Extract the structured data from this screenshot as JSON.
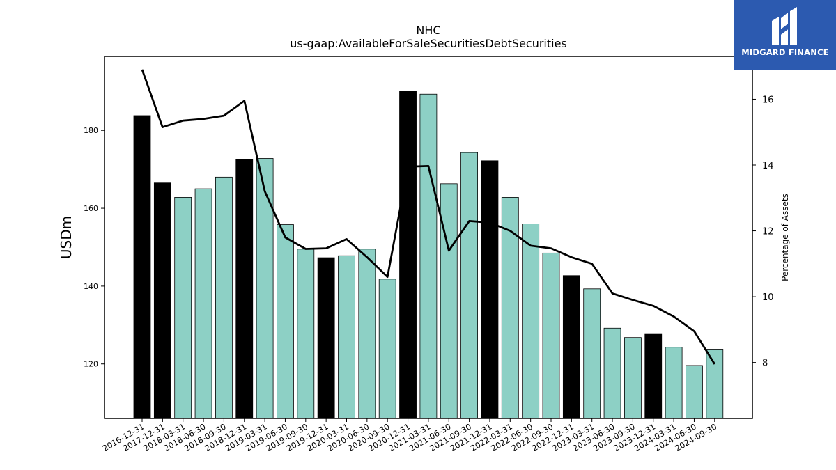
{
  "chart_data": {
    "type": "bar",
    "title": "NHC",
    "subtitle": "us-gaap:AvailableForSaleSecuritiesDebtSecurities",
    "ylabel": "USDm",
    "y2label": "Percentage of Assets",
    "ylim": [
      106,
      199
    ],
    "y2lim": [
      6.3,
      17.3
    ],
    "yticks": [
      120,
      140,
      160,
      180
    ],
    "y2ticks": [
      8,
      10,
      12,
      14,
      16
    ],
    "categories": [
      "2016-12-31",
      "2017-12-31",
      "2018-03-31",
      "2018-06-30",
      "2018-09-30",
      "2018-12-31",
      "2019-03-31",
      "2019-06-30",
      "2019-09-30",
      "2019-12-31",
      "2020-03-31",
      "2020-06-30",
      "2020-09-30",
      "2020-12-31",
      "2021-03-31",
      "2021-06-30",
      "2021-09-30",
      "2021-12-31",
      "2022-03-31",
      "2022-06-30",
      "2022-09-30",
      "2022-12-31",
      "2023-03-31",
      "2023-06-30",
      "2023-09-30",
      "2023-12-31",
      "2024-03-31",
      "2024-06-30",
      "2024-09-30"
    ],
    "series": [
      {
        "values": [
          183.8,
          166.5,
          162.8,
          165.0,
          168.0,
          172.5,
          172.8,
          155.8,
          149.5,
          147.3,
          147.8,
          149.5,
          141.8,
          190.0,
          189.3,
          166.3,
          174.3,
          172.2,
          162.8,
          156.0,
          148.5,
          142.7,
          139.3,
          129.2,
          126.8,
          127.8,
          124.3,
          119.6,
          123.8
        ],
        "colors": [
          "#000000",
          "#000000",
          "#8dd0c5",
          "#8dd0c5",
          "#8dd0c5",
          "#000000",
          "#8dd0c5",
          "#8dd0c5",
          "#8dd0c5",
          "#000000",
          "#8dd0c5",
          "#8dd0c5",
          "#8dd0c5",
          "#000000",
          "#8dd0c5",
          "#8dd0c5",
          "#8dd0c5",
          "#000000",
          "#8dd0c5",
          "#8dd0c5",
          "#8dd0c5",
          "#000000",
          "#8dd0c5",
          "#8dd0c5",
          "#8dd0c5",
          "#000000",
          "#8dd0c5",
          "#8dd0c5",
          "#8dd0c5"
        ]
      },
      {
        "type": "line",
        "axis": "right",
        "color": "#000000",
        "values": [
          16.9,
          15.15,
          15.35,
          15.4,
          15.5,
          15.95,
          13.2,
          11.8,
          11.45,
          11.47,
          11.75,
          11.2,
          10.6,
          13.95,
          13.97,
          11.4,
          12.3,
          12.25,
          12.0,
          11.55,
          11.47,
          11.2,
          11.0,
          10.1,
          9.9,
          9.72,
          9.4,
          8.95,
          7.95
        ]
      }
    ]
  },
  "logo": {
    "text": "MIDGARD FINANCE",
    "background": "#2c5ab0"
  }
}
